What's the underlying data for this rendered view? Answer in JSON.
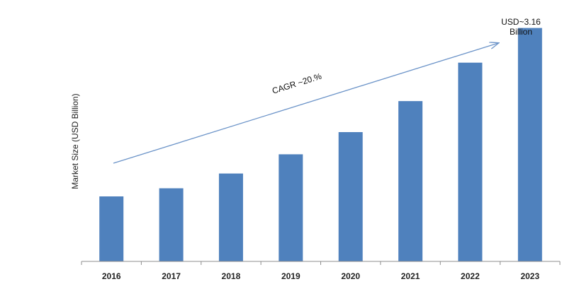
{
  "chart_data": {
    "type": "bar",
    "title": "",
    "xlabel": "",
    "ylabel": "Market Size (USD Billion)",
    "categories": [
      "2016",
      "2017",
      "2018",
      "2019",
      "2020",
      "2021",
      "2022",
      "2023"
    ],
    "values": [
      0.88,
      0.99,
      1.19,
      1.45,
      1.75,
      2.17,
      2.69,
      3.16
    ],
    "ylim": [
      0,
      3.5
    ],
    "grid": false,
    "legend": "none",
    "colors": {
      "bar": "#4f81bd",
      "arrow": "#6b93c8",
      "axis": "#8c8c8c"
    },
    "annotations": {
      "cagr": "CAGR ~20.%",
      "last_value_line1": "USD~3.16",
      "last_value_line2": "Billion"
    }
  }
}
